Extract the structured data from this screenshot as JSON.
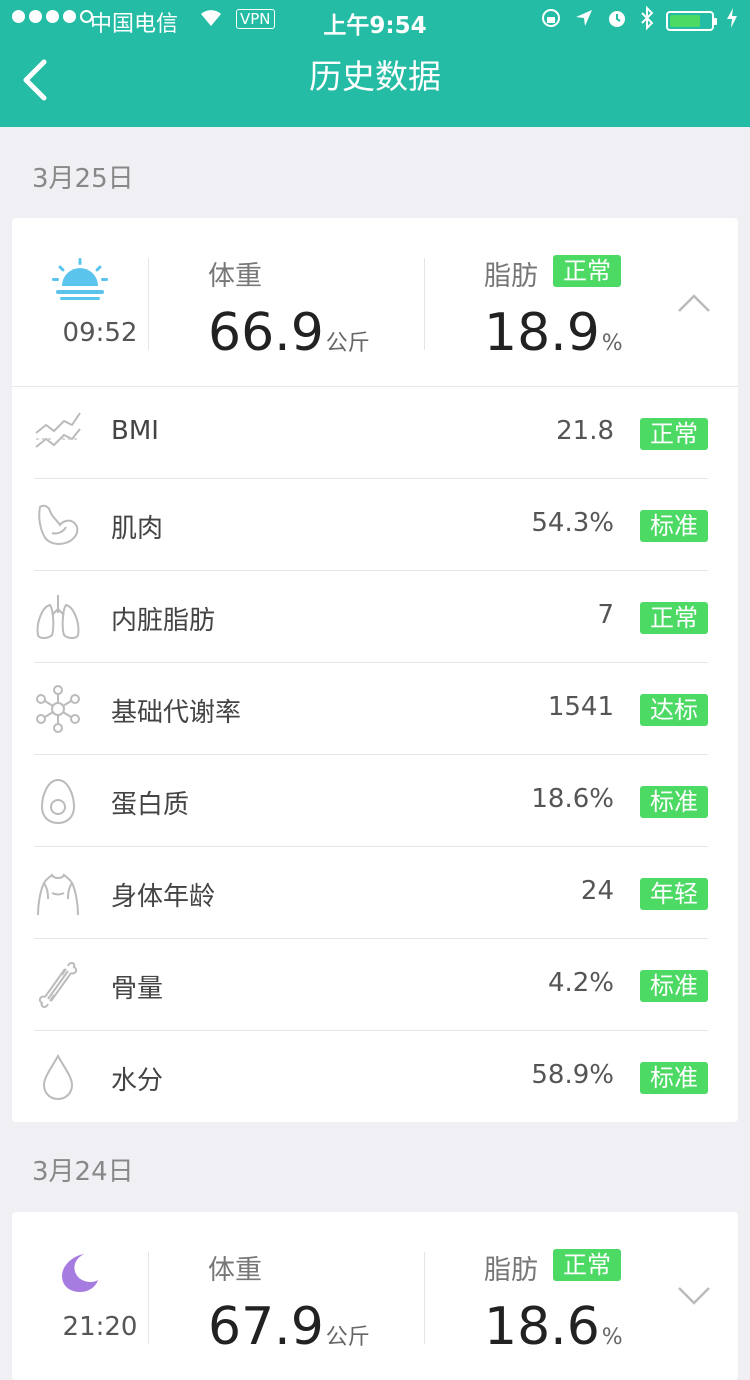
{
  "status_bar": {
    "carrier": "中国电信",
    "vpn": "VPN",
    "time": "上午9:54"
  },
  "header": {
    "title": "历史数据"
  },
  "records": [
    {
      "date": "3月25日",
      "period_icon": "sunrise-icon",
      "time": "09:52",
      "weight_label": "体重",
      "weight_value": "66.9",
      "weight_unit": "公斤",
      "fat_label": "脂肪",
      "fat_status": "正常",
      "fat_value": "18.9",
      "fat_unit": "%",
      "expanded": true,
      "metrics": [
        {
          "icon": "trend-chart-icon",
          "name": "BMI",
          "value": "21.8",
          "status": "正常"
        },
        {
          "icon": "muscle-arm-icon",
          "name": "肌肉",
          "value": "54.3%",
          "status": "标准"
        },
        {
          "icon": "lungs-icon",
          "name": "内脏脂肪",
          "value": "7",
          "status": "正常"
        },
        {
          "icon": "molecule-icon",
          "name": "基础代谢率",
          "value": "1541",
          "status": "达标"
        },
        {
          "icon": "egg-icon",
          "name": "蛋白质",
          "value": "18.6%",
          "status": "标准"
        },
        {
          "icon": "body-torso-icon",
          "name": "身体年龄",
          "value": "24",
          "status": "年轻"
        },
        {
          "icon": "bone-icon",
          "name": "骨量",
          "value": "4.2%",
          "status": "标准"
        },
        {
          "icon": "water-drop-icon",
          "name": "水分",
          "value": "58.9%",
          "status": "标准"
        }
      ]
    },
    {
      "date": "3月24日",
      "period_icon": "moon-icon",
      "time": "21:20",
      "weight_label": "体重",
      "weight_value": "67.9",
      "weight_unit": "公斤",
      "fat_label": "脂肪",
      "fat_status": "正常",
      "fat_value": "18.6",
      "fat_unit": "%",
      "expanded": false
    }
  ],
  "colors": {
    "accent": "#24bca4",
    "badge": "#4cd964",
    "sunrise": "#5bc4ec",
    "moon": "#a77ce0"
  }
}
